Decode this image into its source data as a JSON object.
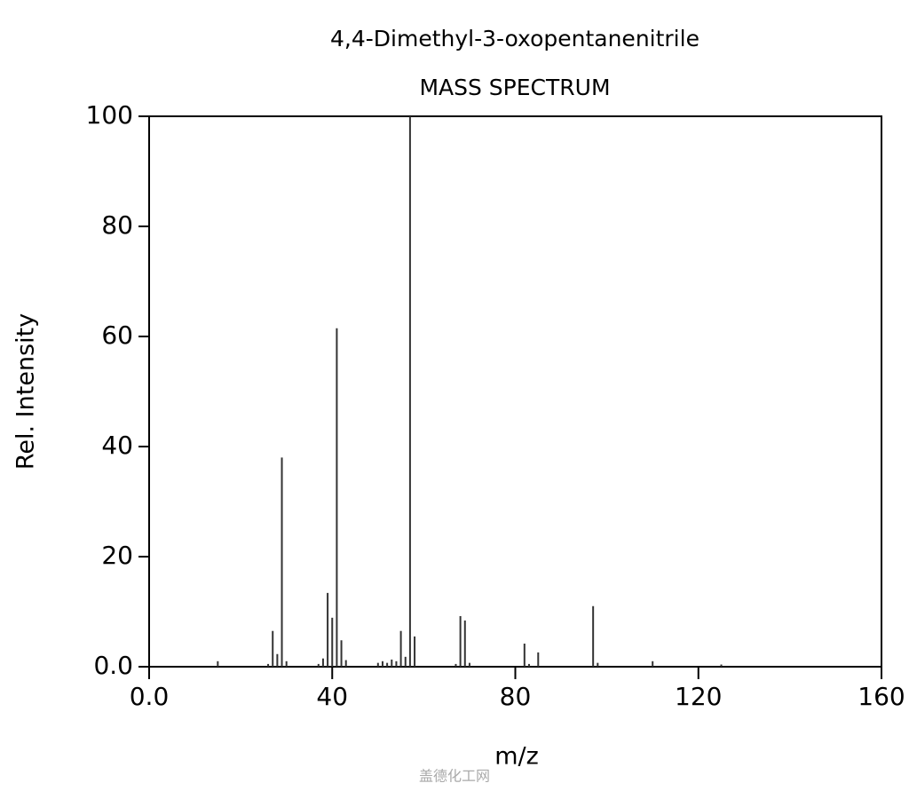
{
  "chart_data": {
    "type": "stick",
    "title": "4,4-Dimethyl-3-oxopentanenitrile",
    "subtitle": "MASS SPECTRUM",
    "x_label": "m/z",
    "y_label": "Rel. Intensity",
    "watermark": "盖德化工网",
    "color": "#333333",
    "x": [
      15,
      26,
      27,
      28,
      29,
      30,
      37,
      38,
      39,
      40,
      41,
      42,
      43,
      50,
      51,
      52,
      53,
      54,
      55,
      56,
      57,
      58,
      67,
      68,
      69,
      70,
      82,
      83,
      85,
      97,
      98,
      110,
      125
    ],
    "values": [
      1,
      0.5,
      6.5,
      2.3,
      38,
      1,
      0.5,
      1.5,
      13.4,
      8.9,
      61.5,
      4.8,
      1.2,
      0.7,
      1,
      0.7,
      1.3,
      1,
      6.5,
      1.8,
      100,
      5.5,
      0.5,
      9.2,
      8.4,
      0.7,
      4.2,
      0.5,
      2.6,
      11,
      0.7,
      1,
      0.4
    ],
    "xlim": [
      0,
      160
    ],
    "ylim": [
      0,
      100
    ],
    "xticks": [
      {
        "value": 0,
        "label": "0.0"
      },
      40,
      80,
      120,
      160
    ],
    "yticks": [
      {
        "value": 0,
        "label": "0.0"
      },
      20,
      40,
      60,
      80,
      100
    ]
  }
}
